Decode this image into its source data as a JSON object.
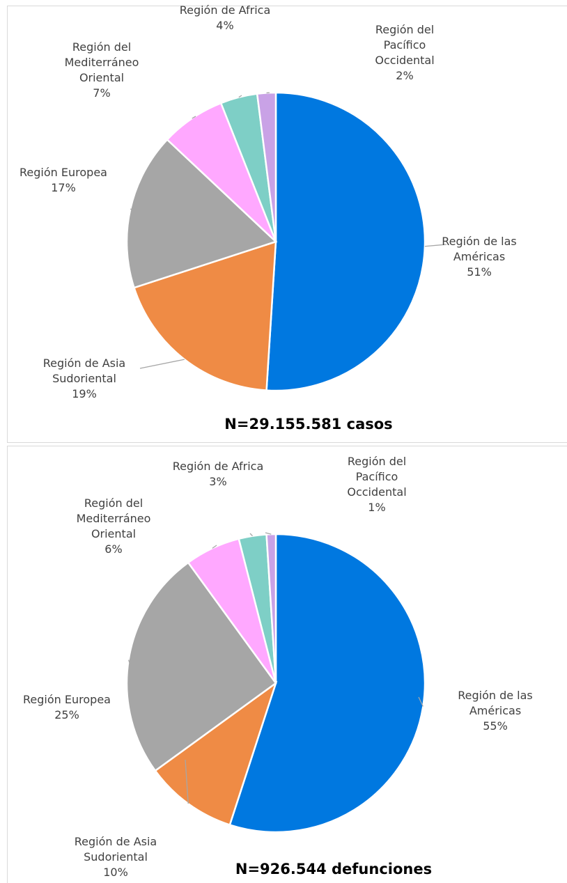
{
  "chart_data": [
    {
      "type": "pie",
      "title": "N=29.155.581 casos",
      "categories": [
        "Región de las Américas",
        "Región de Asia Sudoriental",
        "Región Europea",
        "Región del Mediterráneo Oriental",
        "Región de Africa",
        "Región del Pacífico Occidental"
      ],
      "values": [
        51,
        19,
        17,
        7,
        4,
        2
      ],
      "value_labels": [
        "51%",
        "19%",
        "17%",
        "7%",
        "4%",
        "2%"
      ],
      "colors": [
        "#0078e0",
        "#ef8b45",
        "#a6a6a6",
        "#ffa8ff",
        "#7ecfc6",
        "#c9a2e6"
      ]
    },
    {
      "type": "pie",
      "title": "N=926.544 defunciones",
      "categories": [
        "Región de las Américas",
        "Región de Asia Sudoriental",
        "Región Europea",
        "Región del Mediterráneo Oriental",
        "Región de Africa",
        "Región del Pacífico Occidental"
      ],
      "values": [
        55,
        10,
        25,
        6,
        3,
        1
      ],
      "value_labels": [
        "55%",
        "10%",
        "25%",
        "6%",
        "3%",
        "1%"
      ],
      "colors": [
        "#0078e0",
        "#ef8b45",
        "#a6a6a6",
        "#ffa8ff",
        "#7ecfc6",
        "#c9a2e6"
      ]
    }
  ]
}
